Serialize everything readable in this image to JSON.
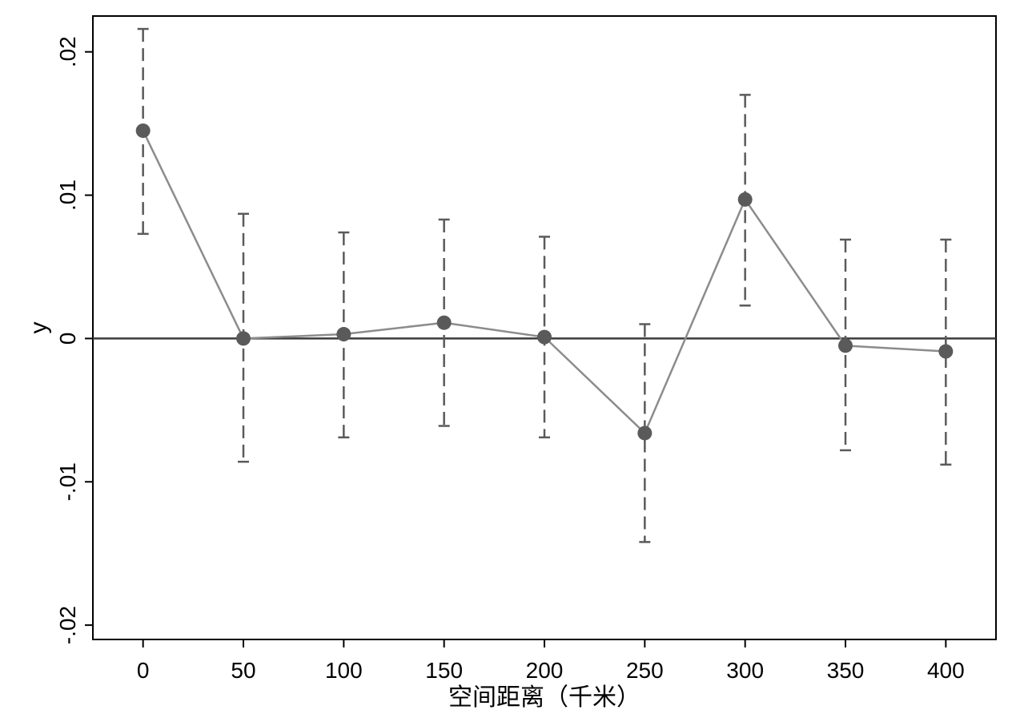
{
  "chart_data": {
    "type": "scatter",
    "title": "",
    "xlabel": "空间距离（千米）",
    "ylabel": "y",
    "xlim": [
      -25,
      425
    ],
    "ylim": [
      -0.021,
      0.0225
    ],
    "x_ticks": [
      {
        "value": 0,
        "label": "0"
      },
      {
        "value": 50,
        "label": "50"
      },
      {
        "value": 100,
        "label": "100"
      },
      {
        "value": 150,
        "label": "150"
      },
      {
        "value": 200,
        "label": "200"
      },
      {
        "value": 250,
        "label": "250"
      },
      {
        "value": 300,
        "label": "300"
      },
      {
        "value": 350,
        "label": "350"
      },
      {
        "value": 400,
        "label": "400"
      }
    ],
    "y_ticks": [
      {
        "value": -0.02,
        "label": "-.02"
      },
      {
        "value": -0.01,
        "label": "-.01"
      },
      {
        "value": 0,
        "label": "0"
      },
      {
        "value": 0.01,
        "label": ".01"
      },
      {
        "value": 0.02,
        "label": ".02"
      }
    ],
    "reference_line_y": 0,
    "grid": false,
    "series": [
      {
        "style": "connected points with dashed confidence intervals",
        "points": [
          {
            "x": 0,
            "y": 0.0145,
            "ci_low": 0.0073,
            "ci_high": 0.0216
          },
          {
            "x": 50,
            "y": 0.0,
            "ci_low": -0.0086,
            "ci_high": 0.0087
          },
          {
            "x": 100,
            "y": 0.0003,
            "ci_low": -0.0069,
            "ci_high": 0.0074
          },
          {
            "x": 150,
            "y": 0.0011,
            "ci_low": -0.0061,
            "ci_high": 0.0083
          },
          {
            "x": 200,
            "y": 0.0001,
            "ci_low": -0.0069,
            "ci_high": 0.0071
          },
          {
            "x": 250,
            "y": -0.0066,
            "ci_low": -0.0142,
            "ci_high": 0.001
          },
          {
            "x": 300,
            "y": 0.0097,
            "ci_low": 0.0023,
            "ci_high": 0.017
          },
          {
            "x": 350,
            "y": -0.0005,
            "ci_low": -0.0078,
            "ci_high": 0.0069
          },
          {
            "x": 400,
            "y": -0.0009,
            "ci_low": -0.0088,
            "ci_high": 0.0069
          }
        ]
      }
    ],
    "colors": {
      "marker": "#5a5a5a",
      "line": "#8c8c8c",
      "ci": "#5a5a5a",
      "reference": "#3a3a3a",
      "frame": "#000000"
    }
  }
}
